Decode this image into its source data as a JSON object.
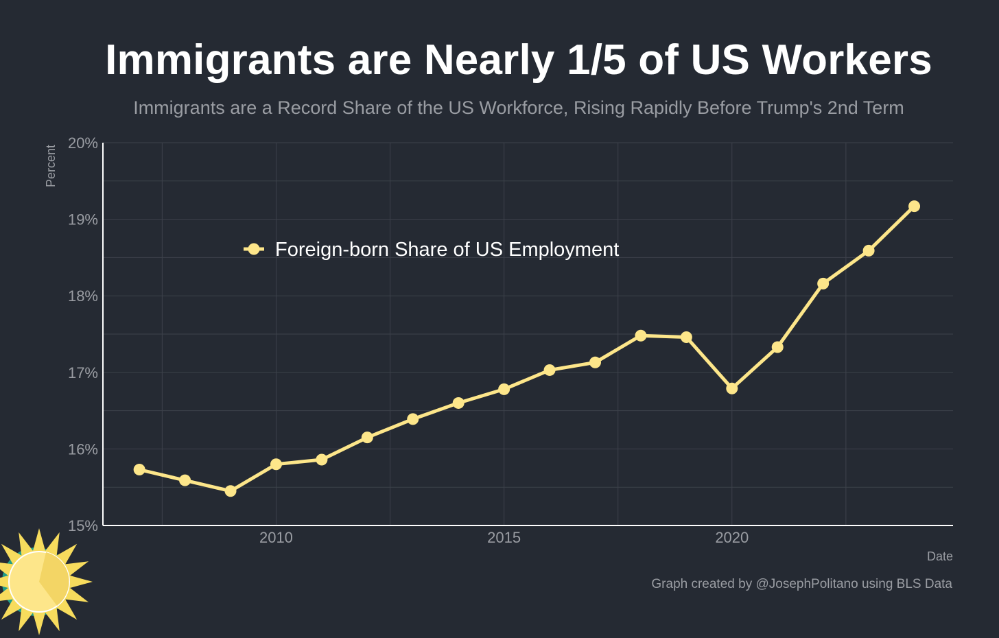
{
  "header": {
    "title": "Immigrants are Nearly 1/5 of US Workers",
    "subtitle": "Immigrants are a Record Share of the US Workforce, Rising Rapidly Before Trump's 2nd Term"
  },
  "footer": {
    "credit": "Graph created by @JosephPolitano using BLS Data"
  },
  "colors": {
    "background": "#252a33",
    "series": "#fde68a",
    "grid": "#3d424b",
    "axis": "#ffffff",
    "text_muted": "#9a9da3"
  },
  "logo": {
    "name": "sun-logo-icon"
  },
  "chart_data": {
    "type": "line",
    "title": "Immigrants are Nearly 1/5 of US Workers",
    "subtitle": "Immigrants are a Record Share of the US Workforce, Rising Rapidly Before Trump's 2nd Term",
    "xlabel": "Date",
    "ylabel": "Percent",
    "xlim": [
      2006.2,
      2024.85
    ],
    "ylim": [
      15,
      20
    ],
    "x_ticks": [
      2010,
      2015,
      2020
    ],
    "x_tick_labels": [
      "2010",
      "2015",
      "2020"
    ],
    "y_ticks": [
      15,
      16,
      17,
      18,
      19,
      20
    ],
    "y_tick_labels": [
      "15%",
      "16%",
      "17%",
      "18%",
      "19%",
      "20%"
    ],
    "grid": true,
    "legend_position": "upper-left",
    "series": [
      {
        "name": "Foreign-born Share of US Employment",
        "color": "#fde68a",
        "x": [
          2007,
          2008,
          2009,
          2010,
          2011,
          2012,
          2013,
          2014,
          2015,
          2016,
          2017,
          2018,
          2019,
          2020,
          2021,
          2022,
          2023,
          2024
        ],
        "values": [
          15.73,
          15.59,
          15.45,
          15.8,
          15.86,
          16.15,
          16.39,
          16.6,
          16.78,
          17.03,
          17.13,
          17.48,
          17.46,
          16.79,
          17.33,
          18.16,
          18.59,
          19.17
        ]
      }
    ]
  }
}
